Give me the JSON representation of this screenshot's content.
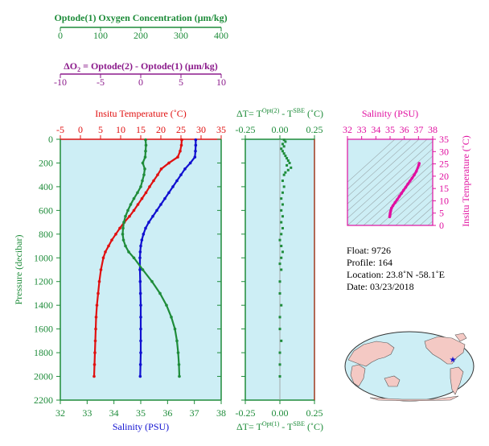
{
  "colors": {
    "oxygen": "#1e8c3a",
    "delta_o2": "#8b1a8b",
    "temperature": "#e01010",
    "salinity": "#1010d0",
    "pressure": "#1e8c3a",
    "magenta": "#e010a0",
    "panel_bg": "#cdeef5",
    "land": "#f4c9c4"
  },
  "axes": {
    "oxygen_title": "Optode(1) Oxygen Concentration (μm/kg)",
    "oxygen_ticks": [
      "0",
      "100",
      "200",
      "300",
      "400"
    ],
    "delta_o2_prefix": "ΔO",
    "delta_o2_sub": "2",
    "delta_o2_rest": " = Optode(2) - Optode(1)   (μm/kg)",
    "delta_o2_ticks": [
      "-10",
      "-5",
      "0",
      "5",
      "10"
    ],
    "temp_title": "Insitu Temperature (˚C)",
    "temp_ticks": [
      "-5",
      "0",
      "5",
      "10",
      "15",
      "20",
      "25",
      "30",
      "35"
    ],
    "salinity_title": "Salinity (PSU)",
    "salinity_ticks": [
      "32",
      "33",
      "34",
      "35",
      "36",
      "37",
      "38"
    ],
    "pressure_title": "Pressure (decibar)",
    "pressure_ticks": [
      "0",
      "200",
      "400",
      "600",
      "800",
      "1000",
      "1200",
      "1400",
      "1600",
      "1800",
      "2000",
      "2200"
    ],
    "dt_top_prefix": "ΔT= T",
    "dt_top_sup1": "Opt(2)",
    "dt_top_mid": " - T",
    "dt_top_sup2": "SBE",
    "dt_top_suffix": " (˚C)",
    "dt_bottom_prefix": "ΔT= T",
    "dt_bottom_sup1": "Opt(1)",
    "dt_bottom_mid": " - T",
    "dt_bottom_sup2": "SBE",
    "dt_bottom_suffix": " (˚C)",
    "dt_ticks": [
      "-0.25",
      "0.00",
      "0.25"
    ],
    "ts_title": "Salinity (PSU)",
    "ts_sal_ticks": [
      "32",
      "33",
      "34",
      "35",
      "36",
      "37",
      "38"
    ],
    "ts_temp_title": "Insitu Temperature (˚C)",
    "ts_temp_ticks": [
      "0",
      "5",
      "10",
      "15",
      "20",
      "25",
      "30",
      "35"
    ]
  },
  "info": {
    "float": "Float:  9726",
    "profile": "Profile:  164",
    "location": "Location:  23.8˚N  -58.1˚E",
    "date": "Date:  03/23/2018"
  },
  "chart_data": [
    {
      "type": "line",
      "name": "profile",
      "ylim": [
        0,
        2200
      ],
      "ylabel": "Pressure (decibar)",
      "pressure": [
        5,
        50,
        100,
        150,
        200,
        250,
        300,
        350,
        400,
        450,
        500,
        550,
        600,
        650,
        700,
        750,
        800,
        850,
        900,
        950,
        1000,
        1100,
        1200,
        1300,
        1400,
        1500,
        1600,
        1700,
        1800,
        1900,
        2000
      ],
      "series": [
        {
          "name": "Insitu Temperature (˚C)",
          "xlim": [
            -5,
            35
          ],
          "values": [
            25.2,
            25.1,
            24.8,
            24.2,
            22.0,
            20.1,
            19.2,
            18.2,
            17.2,
            16.3,
            15.3,
            14.3,
            13.3,
            12.2,
            10.9,
            9.8,
            8.8,
            7.8,
            7.0,
            6.2,
            5.7,
            5.1,
            4.7,
            4.4,
            4.1,
            3.9,
            3.8,
            3.7,
            3.6,
            3.5,
            3.4
          ]
        },
        {
          "name": "Salinity (PSU)",
          "xlim": [
            32,
            38
          ],
          "values": [
            37.05,
            37.05,
            37.04,
            37.02,
            36.85,
            36.65,
            36.5,
            36.35,
            36.2,
            36.05,
            35.9,
            35.75,
            35.6,
            35.45,
            35.3,
            35.18,
            35.1,
            35.04,
            35.0,
            34.98,
            34.97,
            34.97,
            34.98,
            34.99,
            35.0,
            35.0,
            35.0,
            35.0,
            35.0,
            34.99,
            34.98
          ]
        },
        {
          "name": "Optode(1) Oxygen Concentration (μm/kg)",
          "xlim": [
            0,
            400
          ],
          "values": [
            212,
            213,
            212,
            211,
            205,
            210,
            208,
            204,
            200,
            192,
            183,
            175,
            168,
            162,
            158,
            156,
            155,
            157,
            162,
            170,
            183,
            205,
            228,
            248,
            264,
            276,
            285,
            290,
            293,
            295,
            296
          ]
        }
      ]
    },
    {
      "type": "scatter",
      "name": "delta-t",
      "xlim": [
        -0.25,
        0.25
      ],
      "ylim": [
        0,
        2200
      ],
      "pressure": [
        5,
        20,
        40,
        60,
        80,
        100,
        120,
        140,
        160,
        180,
        200,
        220,
        240,
        260,
        280,
        300,
        350,
        400,
        450,
        500,
        550,
        600,
        650,
        700,
        750,
        800,
        850,
        900,
        950,
        1000,
        1050,
        1100,
        1200,
        1300,
        1400,
        1500,
        1600,
        1700,
        1800,
        1900,
        2000
      ],
      "values": [
        0.03,
        0.04,
        0.02,
        0.03,
        0.01,
        0.02,
        0.03,
        0.04,
        0.05,
        0.06,
        0.07,
        0.05,
        0.08,
        0.06,
        0.04,
        0.03,
        0.02,
        0.03,
        0.02,
        0.01,
        0.02,
        0.01,
        0.02,
        0.01,
        0.02,
        0.01,
        0.0,
        0.01,
        0.02,
        0.01,
        0.0,
        0.01,
        0.0,
        0.0,
        0.01,
        0.0,
        0.0,
        0.01,
        0.0,
        0.0,
        0.0
      ]
    },
    {
      "type": "line",
      "name": "t-s",
      "xlim": [
        32,
        38
      ],
      "ylim": [
        0,
        35
      ],
      "salinity": [
        34.97,
        34.99,
        35.0,
        35.02,
        35.05,
        35.1,
        35.2,
        35.35,
        35.5,
        35.65,
        35.8,
        35.95,
        36.1,
        36.25,
        36.4,
        36.55,
        36.7,
        36.85,
        37.02,
        37.05
      ],
      "temperature": [
        3.5,
        4.0,
        4.6,
        5.3,
        6.0,
        7.0,
        8.0,
        9.3,
        10.5,
        11.8,
        13.0,
        14.3,
        15.5,
        16.8,
        18.0,
        19.2,
        20.5,
        22.0,
        24.5,
        25.2
      ]
    }
  ]
}
